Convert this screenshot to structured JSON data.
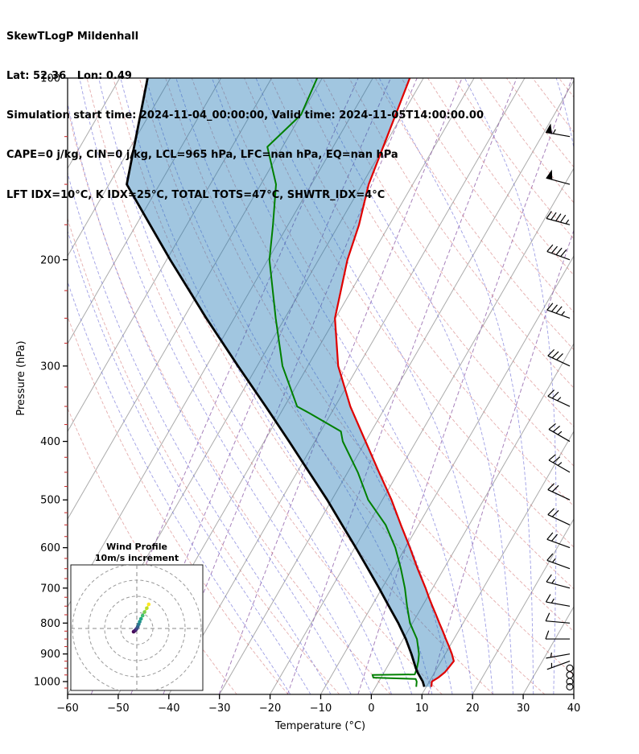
{
  "header": {
    "line1": "SkewTLogP Mildenhall",
    "line2": "Lat: 52.36   Lon: 0.49",
    "line3": "Simulation start time: 2024-11-04_00:00:00, Valid time: 2024-11-05T14:00:00.00",
    "line4": "CAPE=0 j/kg, CIN=0 j/kg, LCL=965 hPa, LFC=nan hPa, EQ=nan hPa",
    "line5": "LFT IDX=10°C, K IDX=25°C, TOTAL TOTS=47°C, SHWTR_IDX=4°C"
  },
  "chart_data": {
    "type": "skewt-logp",
    "axes": {
      "xlabel": "Temperature (°C)",
      "ylabel": "Pressure (hPa)",
      "x_ticks": [
        -60,
        -50,
        -40,
        -30,
        -20,
        -10,
        0,
        10,
        20,
        30,
        40
      ],
      "y_ticks": [
        100,
        200,
        300,
        400,
        500,
        600,
        700,
        800,
        900,
        1000
      ],
      "xlim": [
        -60,
        40
      ],
      "p_top": 100,
      "p_bottom": 1050,
      "skew_deg": 30
    },
    "colors": {
      "temperature": "#e00000",
      "dewpoint": "#008000",
      "parcel": "#000000",
      "shade": "#1f77b4",
      "shade_opacity": 0.42,
      "isotherm": "#ababab",
      "dry_adiabat": "#d06a6a",
      "moist_adiabat": "#5f5fd3",
      "mixing_ratio": "#9263ab",
      "barb": "#000000",
      "minor_tick": "#cc3333"
    },
    "sounding": {
      "temperature_profile": [
        [
          1020,
          11
        ],
        [
          1000,
          10.5
        ],
        [
          985,
          11.3
        ],
        [
          965,
          12
        ],
        [
          950,
          12.2
        ],
        [
          925,
          12.5
        ],
        [
          900,
          11.3
        ],
        [
          875,
          9.9
        ],
        [
          850,
          8.4
        ],
        [
          825,
          6.9
        ],
        [
          800,
          5.3
        ],
        [
          775,
          3.7
        ],
        [
          750,
          2
        ],
        [
          725,
          0.3
        ],
        [
          700,
          -1.4
        ],
        [
          650,
          -5.2
        ],
        [
          600,
          -9.1
        ],
        [
          550,
          -13.5
        ],
        [
          500,
          -18.2
        ],
        [
          450,
          -23.8
        ],
        [
          400,
          -30
        ],
        [
          350,
          -37
        ],
        [
          300,
          -44
        ],
        [
          250,
          -50.1
        ],
        [
          200,
          -54.3
        ],
        [
          175,
          -56
        ],
        [
          150,
          -58.7
        ],
        [
          125,
          -60.5
        ],
        [
          100,
          -62.7
        ]
      ],
      "dewpoint_profile": [
        [
          1020,
          8
        ],
        [
          1000,
          7.5
        ],
        [
          990,
          7
        ],
        [
          985,
          -1.5
        ],
        [
          975,
          -2
        ],
        [
          973,
          6.3
        ],
        [
          950,
          6
        ],
        [
          925,
          5.5
        ],
        [
          900,
          4.8
        ],
        [
          850,
          2.7
        ],
        [
          800,
          -0.5
        ],
        [
          750,
          -3
        ],
        [
          700,
          -5.5
        ],
        [
          650,
          -8.5
        ],
        [
          600,
          -12
        ],
        [
          550,
          -16.5
        ],
        [
          500,
          -22.8
        ],
        [
          450,
          -28
        ],
        [
          400,
          -34.5
        ],
        [
          385,
          -36
        ],
        [
          360,
          -44
        ],
        [
          350,
          -47.5
        ],
        [
          300,
          -55
        ],
        [
          250,
          -61.8
        ],
        [
          200,
          -69.7
        ],
        [
          175,
          -73
        ],
        [
          150,
          -77
        ],
        [
          130,
          -83
        ],
        [
          115,
          -80
        ],
        [
          100,
          -81
        ]
      ],
      "parcel_profile": [
        [
          1020,
          9.6
        ],
        [
          1000,
          8.7
        ],
        [
          965,
          6.6
        ],
        [
          950,
          5.8
        ],
        [
          900,
          3.3
        ],
        [
          850,
          0.5
        ],
        [
          800,
          -2.8
        ],
        [
          750,
          -6.6
        ],
        [
          700,
          -10.6
        ],
        [
          650,
          -15
        ],
        [
          600,
          -19.8
        ],
        [
          550,
          -25.1
        ],
        [
          500,
          -30.9
        ],
        [
          450,
          -37.6
        ],
        [
          400,
          -45.1
        ],
        [
          350,
          -53.7
        ],
        [
          300,
          -63.8
        ],
        [
          250,
          -75.5
        ],
        [
          200,
          -89.3
        ],
        [
          150,
          -106.5
        ],
        [
          100,
          -114.5
        ]
      ]
    },
    "background": {
      "isotherms_c": {
        "start": -120,
        "end": 40,
        "step": 10
      },
      "dry_adiabats_c": {
        "start": -30,
        "end": 220,
        "step": 10
      },
      "moist_adiabats_c": {
        "start": -16,
        "end": 72,
        "step": 4
      },
      "mixing_ratio_g_kg": [
        0.02,
        0.05,
        0.1,
        0.3,
        1,
        3,
        8
      ]
    },
    "winds": {
      "barbs": [
        {
          "p": 925,
          "spd": 5,
          "dir": 250
        },
        {
          "p": 900,
          "spd": 5,
          "dir": 260
        },
        {
          "p": 850,
          "spd": 10,
          "dir": 270
        },
        {
          "p": 800,
          "spd": 10,
          "dir": 275
        },
        {
          "p": 750,
          "spd": 15,
          "dir": 280
        },
        {
          "p": 700,
          "spd": 15,
          "dir": 285
        },
        {
          "p": 650,
          "spd": 15,
          "dir": 290
        },
        {
          "p": 600,
          "spd": 20,
          "dir": 290
        },
        {
          "p": 550,
          "spd": 20,
          "dir": 295
        },
        {
          "p": 500,
          "spd": 20,
          "dir": 295
        },
        {
          "p": 450,
          "spd": 25,
          "dir": 300
        },
        {
          "p": 400,
          "spd": 25,
          "dir": 300
        },
        {
          "p": 350,
          "spd": 25,
          "dir": 295
        },
        {
          "p": 300,
          "spd": 30,
          "dir": 295
        },
        {
          "p": 250,
          "spd": 35,
          "dir": 290
        },
        {
          "p": 200,
          "spd": 40,
          "dir": 290
        },
        {
          "p": 175,
          "spd": 45,
          "dir": 285
        },
        {
          "p": 150,
          "spd": 50,
          "dir": 285
        },
        {
          "p": 125,
          "spd": 55,
          "dir": 280
        }
      ],
      "calm_levels": [
        1020,
        1000,
        975,
        950
      ]
    },
    "hodograph": {
      "title1": "Wind Profile",
      "title2": "10m/s increment",
      "ring_interval_ms": 10,
      "rings_ms": [
        10,
        20,
        30,
        40
      ],
      "trace": [
        {
          "u": -2,
          "v": -2,
          "c": "#440154"
        },
        {
          "u": -1.2,
          "v": -1.4,
          "c": "#471365"
        },
        {
          "u": -0.5,
          "v": -0.6,
          "c": "#482475"
        },
        {
          "u": 0,
          "v": 0,
          "c": "#414487"
        },
        {
          "u": 0.6,
          "v": 1.2,
          "c": "#355f8d"
        },
        {
          "u": 1.2,
          "v": 2.6,
          "c": "#2a788e"
        },
        {
          "u": 1.8,
          "v": 4.2,
          "c": "#21918c"
        },
        {
          "u": 2.6,
          "v": 6,
          "c": "#22a884"
        },
        {
          "u": 3.6,
          "v": 8,
          "c": "#42be71"
        },
        {
          "u": 4.8,
          "v": 10.2,
          "c": "#7ad151"
        },
        {
          "u": 6.2,
          "v": 12.6,
          "c": "#bddf26"
        },
        {
          "u": 7.4,
          "v": 15,
          "c": "#fde725"
        }
      ]
    }
  }
}
